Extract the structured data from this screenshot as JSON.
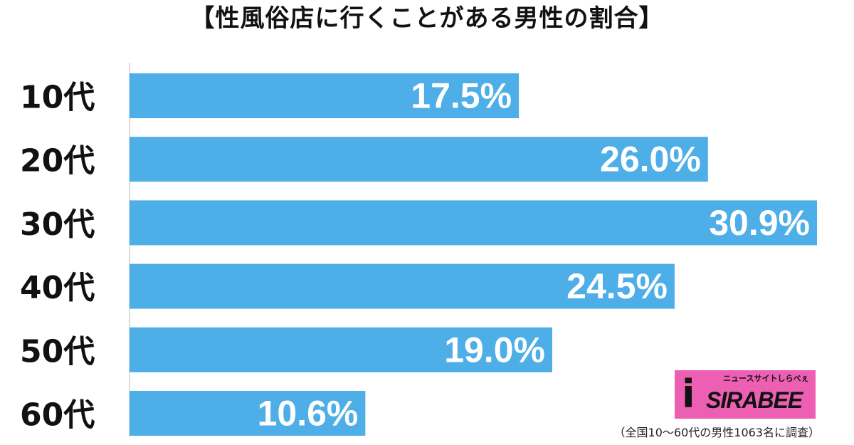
{
  "chart_data": {
    "type": "bar",
    "orientation": "horizontal",
    "title": "【性風俗店に行くことがある男性の割合】",
    "categories": [
      "10代",
      "20代",
      "30代",
      "40代",
      "50代",
      "60代"
    ],
    "values": [
      17.5,
      26.0,
      30.9,
      24.5,
      19.0,
      10.6
    ],
    "data_labels": [
      "17.5%",
      "26.0%",
      "30.9%",
      "24.5%",
      "19.0%",
      "10.6%"
    ],
    "xlim": [
      0,
      31
    ],
    "bar_color": "#4daee8",
    "label_color": "#ffffff",
    "grid": false
  },
  "footnote": "（全国10〜60代の男性1063名に調査）",
  "logo": {
    "text": "SIRABEE",
    "subtext": "ニュースサイトしらべぇ",
    "color": "#ec5fb2"
  }
}
